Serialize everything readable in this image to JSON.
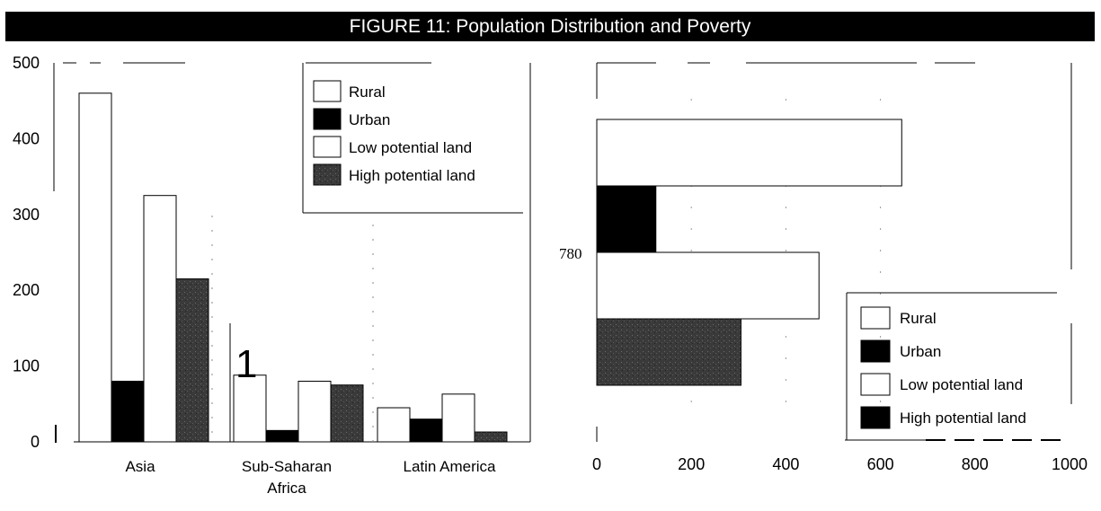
{
  "title": "FIGURE 11: Population Distribution and Poverty",
  "colors": {
    "rural": "#ffffff",
    "urban": "#000000",
    "low_potential": "#ffffff",
    "high_potential": "#3a3a3a"
  },
  "chart_data": [
    {
      "type": "bar",
      "orientation": "vertical",
      "categories": [
        "Asia",
        "Sub-Saharan Africa",
        "Latin America"
      ],
      "series": [
        {
          "name": "Rural",
          "values": [
            460,
            88,
            45
          ]
        },
        {
          "name": "Urban",
          "values": [
            80,
            15,
            30
          ]
        },
        {
          "name": "Low potential land",
          "values": [
            325,
            80,
            63
          ]
        },
        {
          "name": "High potential land",
          "values": [
            215,
            75,
            13
          ]
        }
      ],
      "y_ticks": [
        "0",
        "100",
        "200",
        "300",
        "400",
        "500"
      ],
      "ylim": [
        0,
        500
      ],
      "annotation": "1",
      "legend": [
        "Rural",
        "Urban",
        "Low potential land",
        "High potential land"
      ],
      "legend_position": "top-right"
    },
    {
      "type": "bar",
      "orientation": "horizontal",
      "group_label": "780",
      "series": [
        {
          "name": "Rural",
          "value": 645
        },
        {
          "name": "Urban",
          "value": 125
        },
        {
          "name": "Low potential land",
          "value": 470
        },
        {
          "name": "High potential land",
          "value": 305
        }
      ],
      "x_ticks": [
        "0",
        "200",
        "400",
        "600",
        "800",
        "1000"
      ],
      "xlim": [
        0,
        1000
      ],
      "legend": [
        "Rural",
        "Urban",
        "Low potential land",
        "High potential land"
      ],
      "legend_position": "bottom-right"
    }
  ]
}
